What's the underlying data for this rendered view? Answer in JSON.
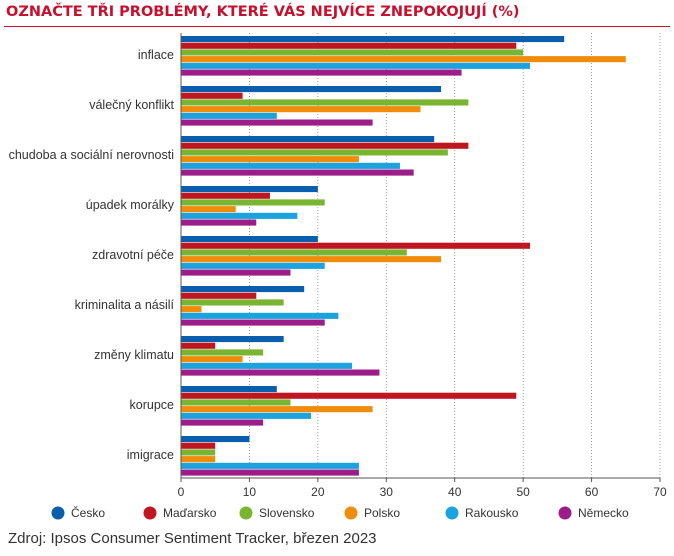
{
  "title": "OZNAČTE TŘI PROBLÉMY, KTERÉ VÁS NEJVÍCE ZNEPOKOJUJÍ (%)",
  "source": "Zdroj: Ipsos Consumer Sentiment Tracker, březen 2023",
  "chart_data": {
    "type": "bar",
    "orientation": "horizontal",
    "title": "OZNAČTE TŘI PROBLÉMY, KTERÉ VÁS NEJVÍCE ZNEPOKOJUJÍ (%)",
    "xlim": [
      0,
      70
    ],
    "xticks": [
      0,
      10,
      20,
      30,
      40,
      50,
      60,
      70
    ],
    "grid": "vertical dotted",
    "legend_position": "bottom",
    "categories": [
      "inflace",
      "válečný konflikt",
      "chudoba a sociální nerovnosti",
      "úpadek morálky",
      "zdravotní péče",
      "kriminalita a násilí",
      "změny klimatu",
      "korupce",
      "imigrace"
    ],
    "series": [
      {
        "name": "Česko",
        "color": "#0a5eab",
        "values": [
          56,
          38,
          37,
          20,
          20,
          18,
          15,
          14,
          10
        ]
      },
      {
        "name": "Maďarsko",
        "color": "#c0161f",
        "values": [
          49,
          9,
          42,
          13,
          51,
          11,
          5,
          49,
          5
        ]
      },
      {
        "name": "Slovensko",
        "color": "#79b530",
        "values": [
          50,
          42,
          39,
          21,
          33,
          15,
          12,
          16,
          5
        ]
      },
      {
        "name": "Polsko",
        "color": "#ef8c0c",
        "values": [
          65,
          35,
          26,
          8,
          38,
          3,
          9,
          28,
          5
        ]
      },
      {
        "name": "Rakousko",
        "color": "#1ba3e0",
        "values": [
          51,
          14,
          32,
          17,
          21,
          23,
          25,
          19,
          26
        ]
      },
      {
        "name": "Německo",
        "color": "#9c1d87",
        "values": [
          41,
          28,
          34,
          11,
          16,
          21,
          29,
          12,
          26
        ]
      }
    ]
  }
}
